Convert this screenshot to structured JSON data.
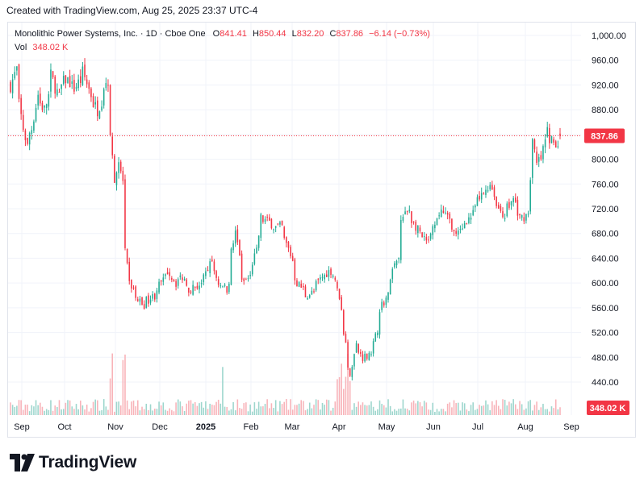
{
  "header": {
    "created_note": "Created with TradingView.com, Aug 25, 2025 23:37 UTC-4"
  },
  "legend": {
    "symbol": "Monolithic Power Systems, Inc. · 1D · Cboe One",
    "o_label": "O",
    "o_value": "841.41",
    "h_label": "H",
    "h_value": "850.44",
    "l_label": "L",
    "l_value": "832.20",
    "c_label": "C",
    "c_value": "837.86",
    "change": "−6.14 (−0.73%)",
    "vol_label": "Vol",
    "vol_value": "348.02 K"
  },
  "footer": {
    "brand": "TradingView"
  },
  "colors": {
    "up": "#22ab94",
    "down": "#f23645",
    "up_vol": "#9dd6cd",
    "down_vol": "#f8b3b9",
    "grid": "#f0f3fa",
    "axis_text": "#131722"
  },
  "chart_data": {
    "type": "candlestick",
    "title": "Monolithic Power Systems, Inc. · 1D · Cboe One",
    "ylim": [
      405,
      1030
    ],
    "y_ticks": [
      "1,000.00",
      "960.00",
      "920.00",
      "880.00",
      "840.00",
      "800.00",
      "760.00",
      "720.00",
      "680.00",
      "640.00",
      "600.00",
      "560.00",
      "520.00",
      "480.00",
      "440.00"
    ],
    "x_ticks": [
      "Sep",
      "Oct",
      "Nov",
      "Dec",
      "2025",
      "Feb",
      "Mar",
      "Apr",
      "May",
      "Jun",
      "Jul",
      "Aug",
      "Sep"
    ],
    "last_price": "837.86",
    "last_volume": "348.02 K",
    "close_path": [
      [
        "2024-08-27",
        920
      ],
      [
        "2024-08-30",
        945
      ],
      [
        "2024-09-04",
        850
      ],
      [
        "2024-09-06",
        820
      ],
      [
        "2024-09-10",
        850
      ],
      [
        "2024-09-13",
        905
      ],
      [
        "2024-09-18",
        880
      ],
      [
        "2024-09-23",
        935
      ],
      [
        "2024-09-27",
        900
      ],
      [
        "2024-10-02",
        930
      ],
      [
        "2024-10-08",
        915
      ],
      [
        "2024-10-14",
        940
      ],
      [
        "2024-10-18",
        905
      ],
      [
        "2024-10-23",
        880
      ],
      [
        "2024-10-28",
        920
      ],
      [
        "2024-10-30",
        930
      ],
      [
        "2024-10-31",
        830
      ],
      [
        "2024-11-04",
        770
      ],
      [
        "2024-11-06",
        790
      ],
      [
        "2024-11-08",
        765
      ],
      [
        "2024-11-11",
        650
      ],
      [
        "2024-11-13",
        600
      ],
      [
        "2024-11-18",
        575
      ],
      [
        "2024-11-22",
        565
      ],
      [
        "2024-11-29",
        580
      ],
      [
        "2024-12-04",
        600
      ],
      [
        "2024-12-09",
        620
      ],
      [
        "2024-12-13",
        600
      ],
      [
        "2024-12-18",
        610
      ],
      [
        "2024-12-23",
        590
      ],
      [
        "2024-12-31",
        600
      ],
      [
        "2025-01-06",
        640
      ],
      [
        "2025-01-10",
        600
      ],
      [
        "2025-01-16",
        590
      ],
      [
        "2025-01-22",
        680
      ],
      [
        "2025-01-27",
        600
      ],
      [
        "2025-01-31",
        610
      ],
      [
        "2025-02-05",
        650
      ],
      [
        "2025-02-07",
        705
      ],
      [
        "2025-02-12",
        700
      ],
      [
        "2025-02-18",
        690
      ],
      [
        "2025-02-21",
        690
      ],
      [
        "2025-02-26",
        655
      ],
      [
        "2025-03-04",
        600
      ],
      [
        "2025-03-10",
        580
      ],
      [
        "2025-03-14",
        585
      ],
      [
        "2025-03-20",
        610
      ],
      [
        "2025-03-26",
        620
      ],
      [
        "2025-04-01",
        580
      ],
      [
        "2025-04-03",
        520
      ],
      [
        "2025-04-08",
        455
      ],
      [
        "2025-04-11",
        500
      ],
      [
        "2025-04-16",
        480
      ],
      [
        "2025-04-22",
        490
      ],
      [
        "2025-04-28",
        560
      ],
      [
        "2025-05-02",
        580
      ],
      [
        "2025-05-06",
        620
      ],
      [
        "2025-05-09",
        640
      ],
      [
        "2025-05-12",
        700
      ],
      [
        "2025-05-16",
        720
      ],
      [
        "2025-05-22",
        685
      ],
      [
        "2025-05-28",
        665
      ],
      [
        "2025-06-03",
        690
      ],
      [
        "2025-06-06",
        720
      ],
      [
        "2025-06-11",
        705
      ],
      [
        "2025-06-17",
        675
      ],
      [
        "2025-06-23",
        700
      ],
      [
        "2025-06-27",
        710
      ],
      [
        "2025-07-03",
        740
      ],
      [
        "2025-07-09",
        760
      ],
      [
        "2025-07-14",
        725
      ],
      [
        "2025-07-18",
        710
      ],
      [
        "2025-07-24",
        735
      ],
      [
        "2025-07-29",
        705
      ],
      [
        "2025-08-04",
        715
      ],
      [
        "2025-08-06",
        830
      ],
      [
        "2025-08-08",
        790
      ],
      [
        "2025-08-12",
        800
      ],
      [
        "2025-08-15",
        845
      ],
      [
        "2025-08-19",
        830
      ],
      [
        "2025-08-22",
        815
      ],
      [
        "2025-08-25",
        837.86
      ]
    ]
  }
}
